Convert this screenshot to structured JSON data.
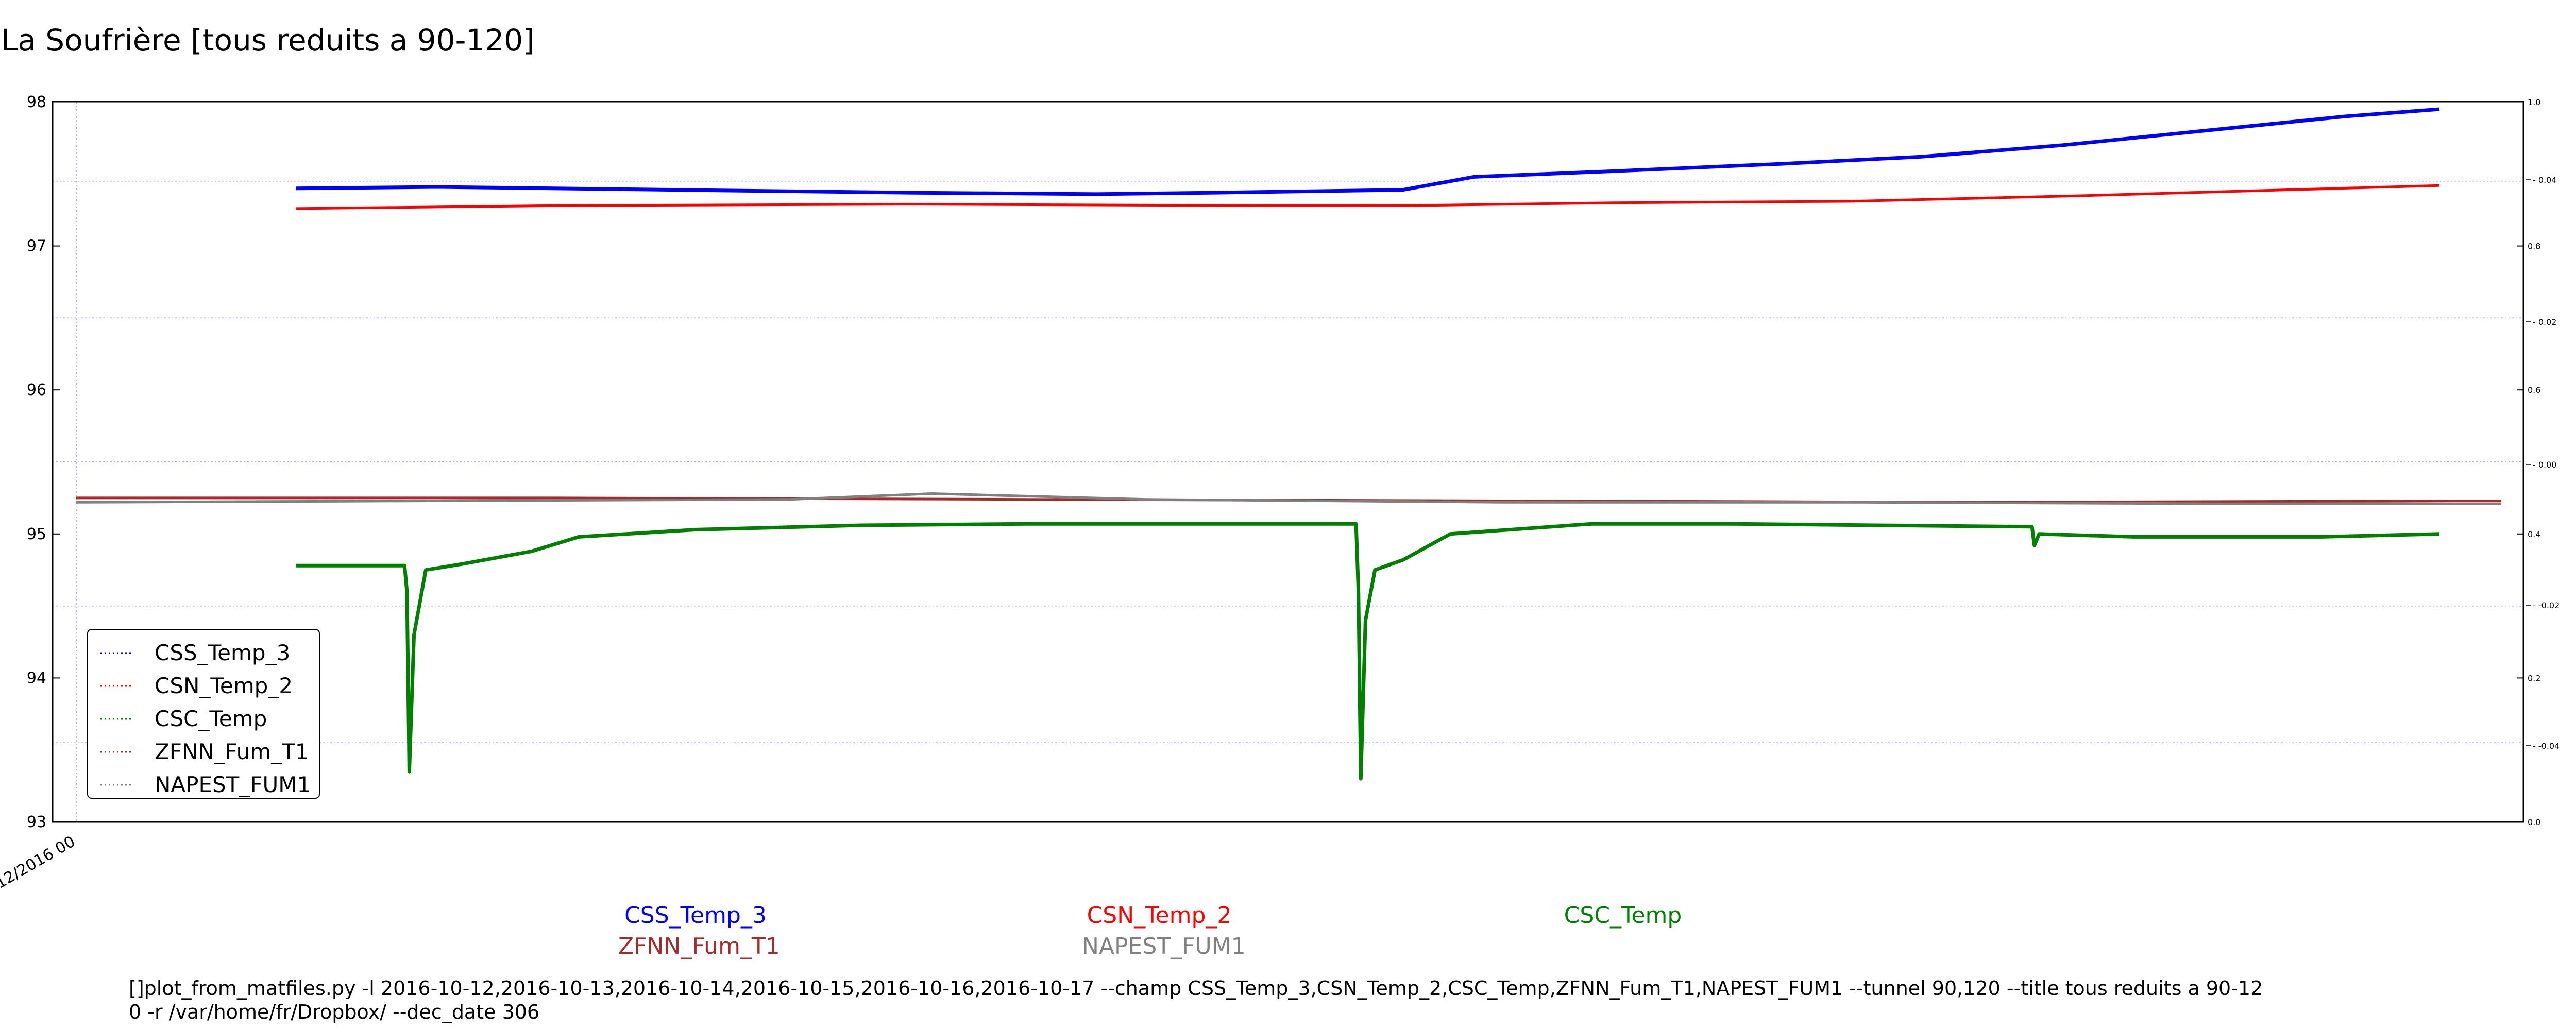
{
  "title": "La Soufrière [tous reduits a 90-120]",
  "below_labels": [
    {
      "text": "CSS_Temp_3",
      "color": "#0000ff"
    },
    {
      "text": "CSN_Temp_2",
      "color": "#ff0000"
    },
    {
      "text": "CSC_Temp",
      "color": "#008000"
    },
    {
      "text": "ZFNN_Fum_T1",
      "color": "#a52a2a"
    },
    {
      "text": "NAPEST_FUM1",
      "color": "#808080"
    }
  ],
  "command_line": "[]plot_from_matfiles.py -l 2016-10-12,2016-10-13,2016-10-14,2016-10-15,2016-10-16,2016-10-17 --champ CSS_Temp_3,CSN_Temp_2,CSC_Temp,ZFNN_Fum_T1,NAPEST_FUM1 --tunnel 90,120 --title tous reduits a 90-12\n0 -r /var/home/fr/Dropbox/ --dec_date 306",
  "chart_data": {
    "type": "line",
    "title": "La Soufrière [tous reduits a 90-120]",
    "x_tick_labels": [
      "12/2016 00"
    ],
    "xlim": [
      0,
      1000
    ],
    "ylim": [
      93,
      98
    ],
    "y_ticks": [
      93,
      94,
      95,
      96,
      97,
      98
    ],
    "right_axis_1": {
      "ylim": [
        0.0,
        1.0
      ],
      "ticks": [
        0.0,
        0.2,
        0.4,
        0.6,
        0.8,
        1.0
      ]
    },
    "right_axis_2": {
      "ticks": [
        -0.04,
        -0.02,
        0.0,
        0.02,
        0.04
      ]
    },
    "grid": true,
    "legend": "lower-left",
    "series": [
      {
        "name": "CSS_Temp_3",
        "color": "#0000ff",
        "x": [
          90,
          150,
          250,
          350,
          430,
          480,
          520,
          560,
          590,
          650,
          720,
          780,
          840,
          900,
          960,
          1000
        ],
        "y": [
          97.4,
          97.41,
          97.39,
          97.37,
          97.36,
          97.37,
          97.38,
          97.39,
          97.48,
          97.52,
          97.57,
          97.62,
          97.7,
          97.8,
          97.9,
          97.95
        ]
      },
      {
        "name": "CSN_Temp_2",
        "color": "#ff0000",
        "x": [
          90,
          200,
          350,
          500,
          560,
          650,
          750,
          850,
          1000
        ],
        "y": [
          97.26,
          97.28,
          97.29,
          97.28,
          97.28,
          97.3,
          97.31,
          97.35,
          97.42
        ]
      },
      {
        "name": "CSC_Temp",
        "color": "#008000",
        "x": [
          90,
          136,
          137,
          138,
          140,
          145,
          160,
          190,
          210,
          260,
          330,
          400,
          540,
          541,
          542,
          544,
          548,
          560,
          580,
          640,
          700,
          760,
          827,
          828,
          830,
          870,
          950,
          1000
        ],
        "y": [
          94.78,
          94.78,
          94.6,
          93.35,
          94.3,
          94.75,
          94.79,
          94.88,
          94.98,
          95.03,
          95.06,
          95.07,
          95.07,
          94.6,
          93.3,
          94.4,
          94.75,
          94.82,
          95.0,
          95.07,
          95.07,
          95.06,
          95.05,
          94.92,
          95.0,
          94.98,
          94.98,
          95.0
        ]
      },
      {
        "name": "ZFNN_Fum_T1",
        "color": "#a52a2a",
        "x": [
          0,
          200,
          400,
          600,
          800,
          1000,
          1020
        ],
        "y": [
          95.25,
          95.25,
          95.24,
          95.23,
          95.22,
          95.23,
          95.23
        ]
      },
      {
        "name": "NAPEST_FUM1",
        "color": "#808080",
        "x": [
          0,
          150,
          300,
          360,
          450,
          600,
          750,
          900,
          1020
        ],
        "y": [
          95.22,
          95.23,
          95.24,
          95.28,
          95.24,
          95.22,
          95.22,
          95.21,
          95.21
        ]
      }
    ]
  }
}
